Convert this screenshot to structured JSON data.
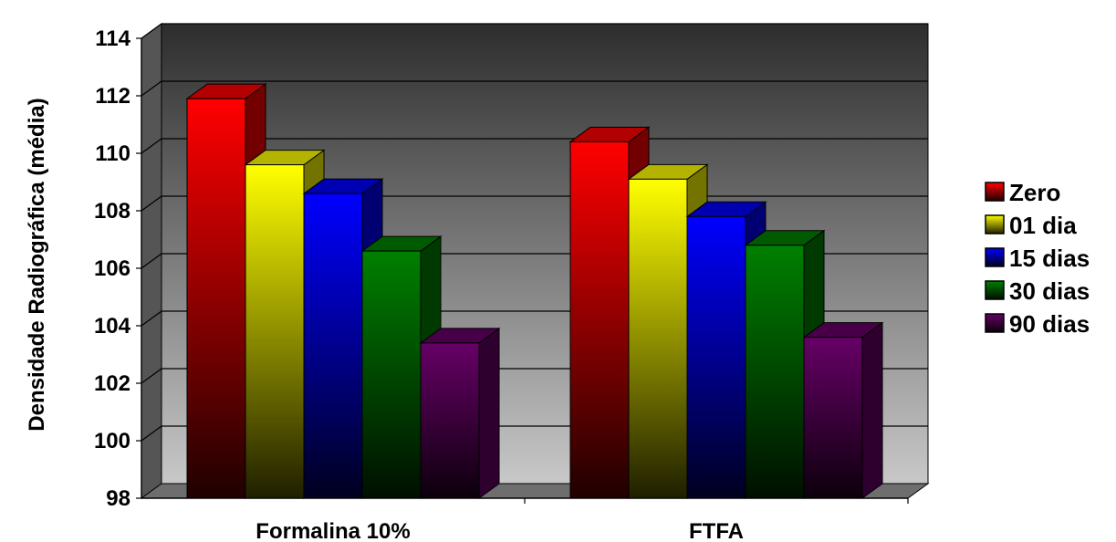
{
  "chart_data": {
    "type": "bar",
    "title": "",
    "xlabel": "",
    "ylabel": "Densidade Radiográfica (média)",
    "categories": [
      "Formalina 10%",
      "FTFA"
    ],
    "ylim": [
      98,
      114
    ],
    "yticks": [
      "98",
      "100",
      "102",
      "104",
      "106",
      "108",
      "110",
      "112",
      "114"
    ],
    "grid": true,
    "legend_position": "right",
    "style": "3d-clustered",
    "series": [
      {
        "name": "Zero",
        "values": [
          111.9,
          110.4
        ],
        "color": "#ff0000"
      },
      {
        "name": "01 dia",
        "values": [
          109.6,
          109.1
        ],
        "color": "#ffff00"
      },
      {
        "name": "15 dias",
        "values": [
          108.6,
          107.8
        ],
        "color": "#0000ff"
      },
      {
        "name": "30 dias",
        "values": [
          106.6,
          106.8
        ],
        "color": "#008000"
      },
      {
        "name": "90 dias",
        "values": [
          103.4,
          103.6
        ],
        "color": "#660066"
      }
    ]
  }
}
